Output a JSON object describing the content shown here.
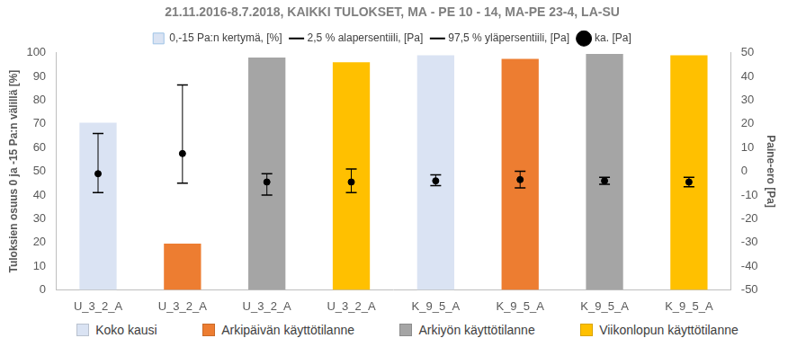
{
  "chart_data": {
    "type": "bar",
    "title": "21.11.2016-8.7.2018, KAIKKI TULOKSET, MA - PE 10 - 14, MA-PE 23-4, LA-SU",
    "categories": [
      "U_3_2_A",
      "U_3_2_A",
      "U_3_2_A",
      "U_3_2_A",
      "K_9_5_A",
      "K_9_5_A",
      "K_9_5_A",
      "K_9_5_A"
    ],
    "y_label": "Tuloksien osuus 0 ja -15 Pa:n välillä [%]",
    "y2_label": "Paine-ero [Pa]",
    "ylim": [
      0,
      100
    ],
    "yticks": [
      0,
      10,
      20,
      30,
      40,
      50,
      60,
      70,
      80,
      90,
      100
    ],
    "y2lim": [
      -50,
      50
    ],
    "y2ticks": [
      -50,
      -40,
      -30,
      -20,
      -10,
      0,
      10,
      20,
      30,
      40,
      50
    ],
    "grid": false,
    "legend": "top",
    "series": [
      {
        "name": "0,-15 Pa:n kertymä, [%]",
        "type": "bar",
        "values": [
          70.5,
          19.5,
          98,
          96,
          99,
          97.5,
          99.5,
          99
        ],
        "colors": [
          "#dae3f3",
          "#ed7d31",
          "#a5a5a5",
          "#ffc000",
          "#dae3f3",
          "#ed7d31",
          "#a5a5a5",
          "#ffc000"
        ]
      },
      {
        "name": "2,5 % alapersentiili, [Pa]",
        "type": "scatter",
        "marker": "dash",
        "color": "#000000",
        "axis": "y2",
        "values": [
          -9,
          -5,
          -10,
          -9,
          -6,
          -7,
          -5.5,
          -6.5
        ]
      },
      {
        "name": "97,5 % yläpersentiili, [Pa]",
        "type": "scatter",
        "marker": "dash",
        "color": "#000000",
        "axis": "y2",
        "values": [
          16,
          36.5,
          -1,
          1,
          -1.5,
          0,
          -2.5,
          -2.5
        ]
      },
      {
        "name": "ka. [Pa]",
        "type": "scatter",
        "marker": "circle",
        "color": "#000000",
        "axis": "y2",
        "values": [
          -1,
          7.5,
          -4.5,
          -4.5,
          -4,
          -3.5,
          -4,
          -4.5
        ]
      }
    ],
    "annotations": [
      {
        "text": "Koko kausi",
        "color": "#dae3f3"
      },
      {
        "text": "Arkipäivän käyttötilanne",
        "color": "#ed7d31"
      },
      {
        "text": "Arkiyön käyttötilanne",
        "color": "#a5a5a5"
      },
      {
        "text": "Viikonlopun käyttötilanne",
        "color": "#ffc000"
      }
    ]
  }
}
